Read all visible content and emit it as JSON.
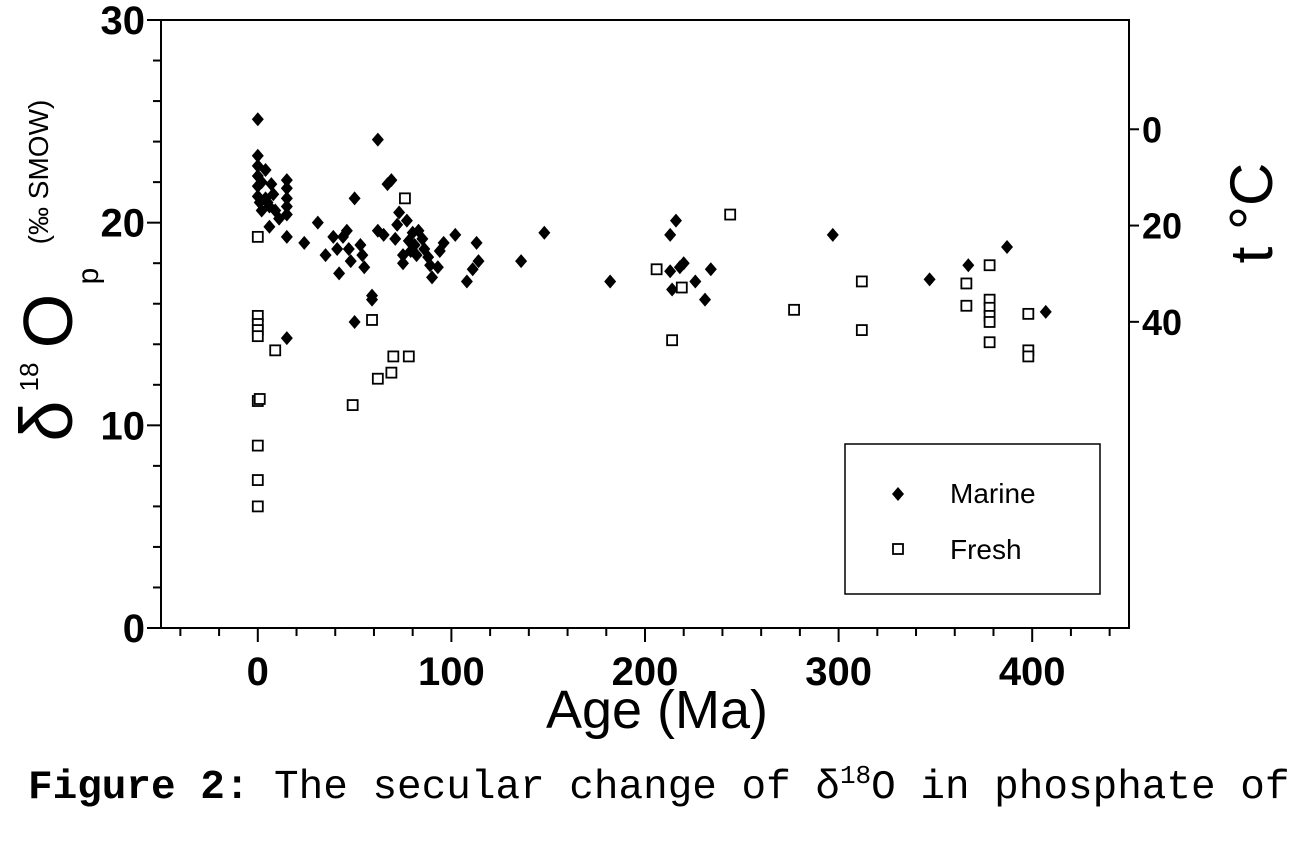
{
  "chart_data": {
    "type": "scatter",
    "xlabel": "Age (Ma)",
    "ylabel": {
      "symbol": "δ",
      "sup": "18",
      "main": "O",
      "sub": "p",
      "unit": "(‰ SMOW)"
    },
    "y2label": "t °C",
    "xlim": [
      -50,
      450
    ],
    "ylim": [
      0,
      30
    ],
    "y2lim": [
      103.6,
      -22.7
    ],
    "xticks": [
      0,
      100,
      200,
      300,
      400
    ],
    "yticks": [
      0,
      10,
      20,
      30
    ],
    "y2ticks": [
      0,
      20,
      40
    ],
    "x_minor_step": 20,
    "y_minor_step": 2,
    "grid": false,
    "legend": "bottom-right",
    "series": [
      {
        "name": "Marine",
        "marker": "diamond-filled",
        "color": "#000000",
        "points": [
          [
            0,
            25.1
          ],
          [
            0,
            23.3
          ],
          [
            0,
            22.8
          ],
          [
            0,
            22.3
          ],
          [
            0,
            21.8
          ],
          [
            0,
            21.3
          ],
          [
            1,
            21.0
          ],
          [
            2,
            22.0
          ],
          [
            2,
            20.6
          ],
          [
            4,
            22.6
          ],
          [
            4,
            21.2
          ],
          [
            5,
            21.0
          ],
          [
            6,
            20.8
          ],
          [
            6,
            19.8
          ],
          [
            7,
            21.9
          ],
          [
            8,
            21.4
          ],
          [
            9,
            20.6
          ],
          [
            11,
            20.2
          ],
          [
            15,
            22.1
          ],
          [
            15,
            21.7
          ],
          [
            15,
            21.2
          ],
          [
            15,
            20.8
          ],
          [
            15,
            20.4
          ],
          [
            15,
            19.3
          ],
          [
            15,
            14.3
          ],
          [
            24,
            19.0
          ],
          [
            31,
            20.0
          ],
          [
            35,
            18.4
          ],
          [
            39,
            19.3
          ],
          [
            41,
            18.7
          ],
          [
            42,
            17.5
          ],
          [
            44,
            19.3
          ],
          [
            46,
            19.6
          ],
          [
            47,
            18.7
          ],
          [
            48,
            18.1
          ],
          [
            50,
            21.2
          ],
          [
            50,
            15.1
          ],
          [
            53,
            18.9
          ],
          [
            54,
            18.4
          ],
          [
            55,
            17.8
          ],
          [
            59,
            16.4
          ],
          [
            59,
            16.2
          ],
          [
            62,
            24.1
          ],
          [
            62,
            19.6
          ],
          [
            65,
            19.4
          ],
          [
            67,
            21.9
          ],
          [
            69,
            22.1
          ],
          [
            71,
            19.2
          ],
          [
            72,
            19.9
          ],
          [
            73,
            20.5
          ],
          [
            75,
            18.4
          ],
          [
            75,
            18.0
          ],
          [
            77,
            20.1
          ],
          [
            78,
            19.1
          ],
          [
            79,
            18.6
          ],
          [
            80,
            19.5
          ],
          [
            81,
            18.9
          ],
          [
            82,
            18.4
          ],
          [
            83,
            19.6
          ],
          [
            85,
            19.2
          ],
          [
            86,
            18.7
          ],
          [
            88,
            18.3
          ],
          [
            89,
            17.9
          ],
          [
            90,
            17.3
          ],
          [
            93,
            17.8
          ],
          [
            94,
            18.6
          ],
          [
            96,
            19.0
          ],
          [
            102,
            19.4
          ],
          [
            108,
            17.1
          ],
          [
            111,
            17.7
          ],
          [
            113,
            19.0
          ],
          [
            114,
            18.1
          ],
          [
            136,
            18.1
          ],
          [
            148,
            19.5
          ],
          [
            182,
            17.1
          ],
          [
            213,
            19.4
          ],
          [
            216,
            20.1
          ],
          [
            213,
            17.6
          ],
          [
            214,
            16.7
          ],
          [
            218,
            17.8
          ],
          [
            220,
            18.0
          ],
          [
            226,
            17.1
          ],
          [
            231,
            16.2
          ],
          [
            234,
            17.7
          ],
          [
            297,
            19.4
          ],
          [
            347,
            17.2
          ],
          [
            367,
            17.9
          ],
          [
            387,
            18.8
          ],
          [
            407,
            15.6
          ]
        ]
      },
      {
        "name": "Fresh",
        "marker": "square-open",
        "color": "#000000",
        "points": [
          [
            0,
            19.3
          ],
          [
            0,
            15.4
          ],
          [
            0,
            15.0
          ],
          [
            0,
            14.7
          ],
          [
            0,
            14.4
          ],
          [
            0,
            11.2
          ],
          [
            1,
            11.3
          ],
          [
            0,
            9.0
          ],
          [
            0,
            7.3
          ],
          [
            0,
            6.0
          ],
          [
            9,
            13.7
          ],
          [
            49,
            11.0
          ],
          [
            59,
            15.2
          ],
          [
            62,
            12.3
          ],
          [
            69,
            12.6
          ],
          [
            70,
            13.4
          ],
          [
            78,
            13.4
          ],
          [
            76,
            21.2
          ],
          [
            206,
            17.7
          ],
          [
            214,
            14.2
          ],
          [
            219,
            16.8
          ],
          [
            244,
            20.4
          ],
          [
            277,
            15.7
          ],
          [
            312,
            17.1
          ],
          [
            312,
            14.7
          ],
          [
            366,
            17.0
          ],
          [
            366,
            15.9
          ],
          [
            378,
            17.9
          ],
          [
            378,
            16.2
          ],
          [
            378,
            15.8
          ],
          [
            378,
            15.4
          ],
          [
            378,
            15.1
          ],
          [
            378,
            14.1
          ],
          [
            398,
            15.5
          ],
          [
            398,
            13.7
          ],
          [
            398,
            13.4
          ]
        ]
      }
    ]
  },
  "caption": {
    "label": "Figure 2:",
    "text": "The secular change of δ",
    "sup": "18",
    "text_end": "O in phosphate of"
  }
}
